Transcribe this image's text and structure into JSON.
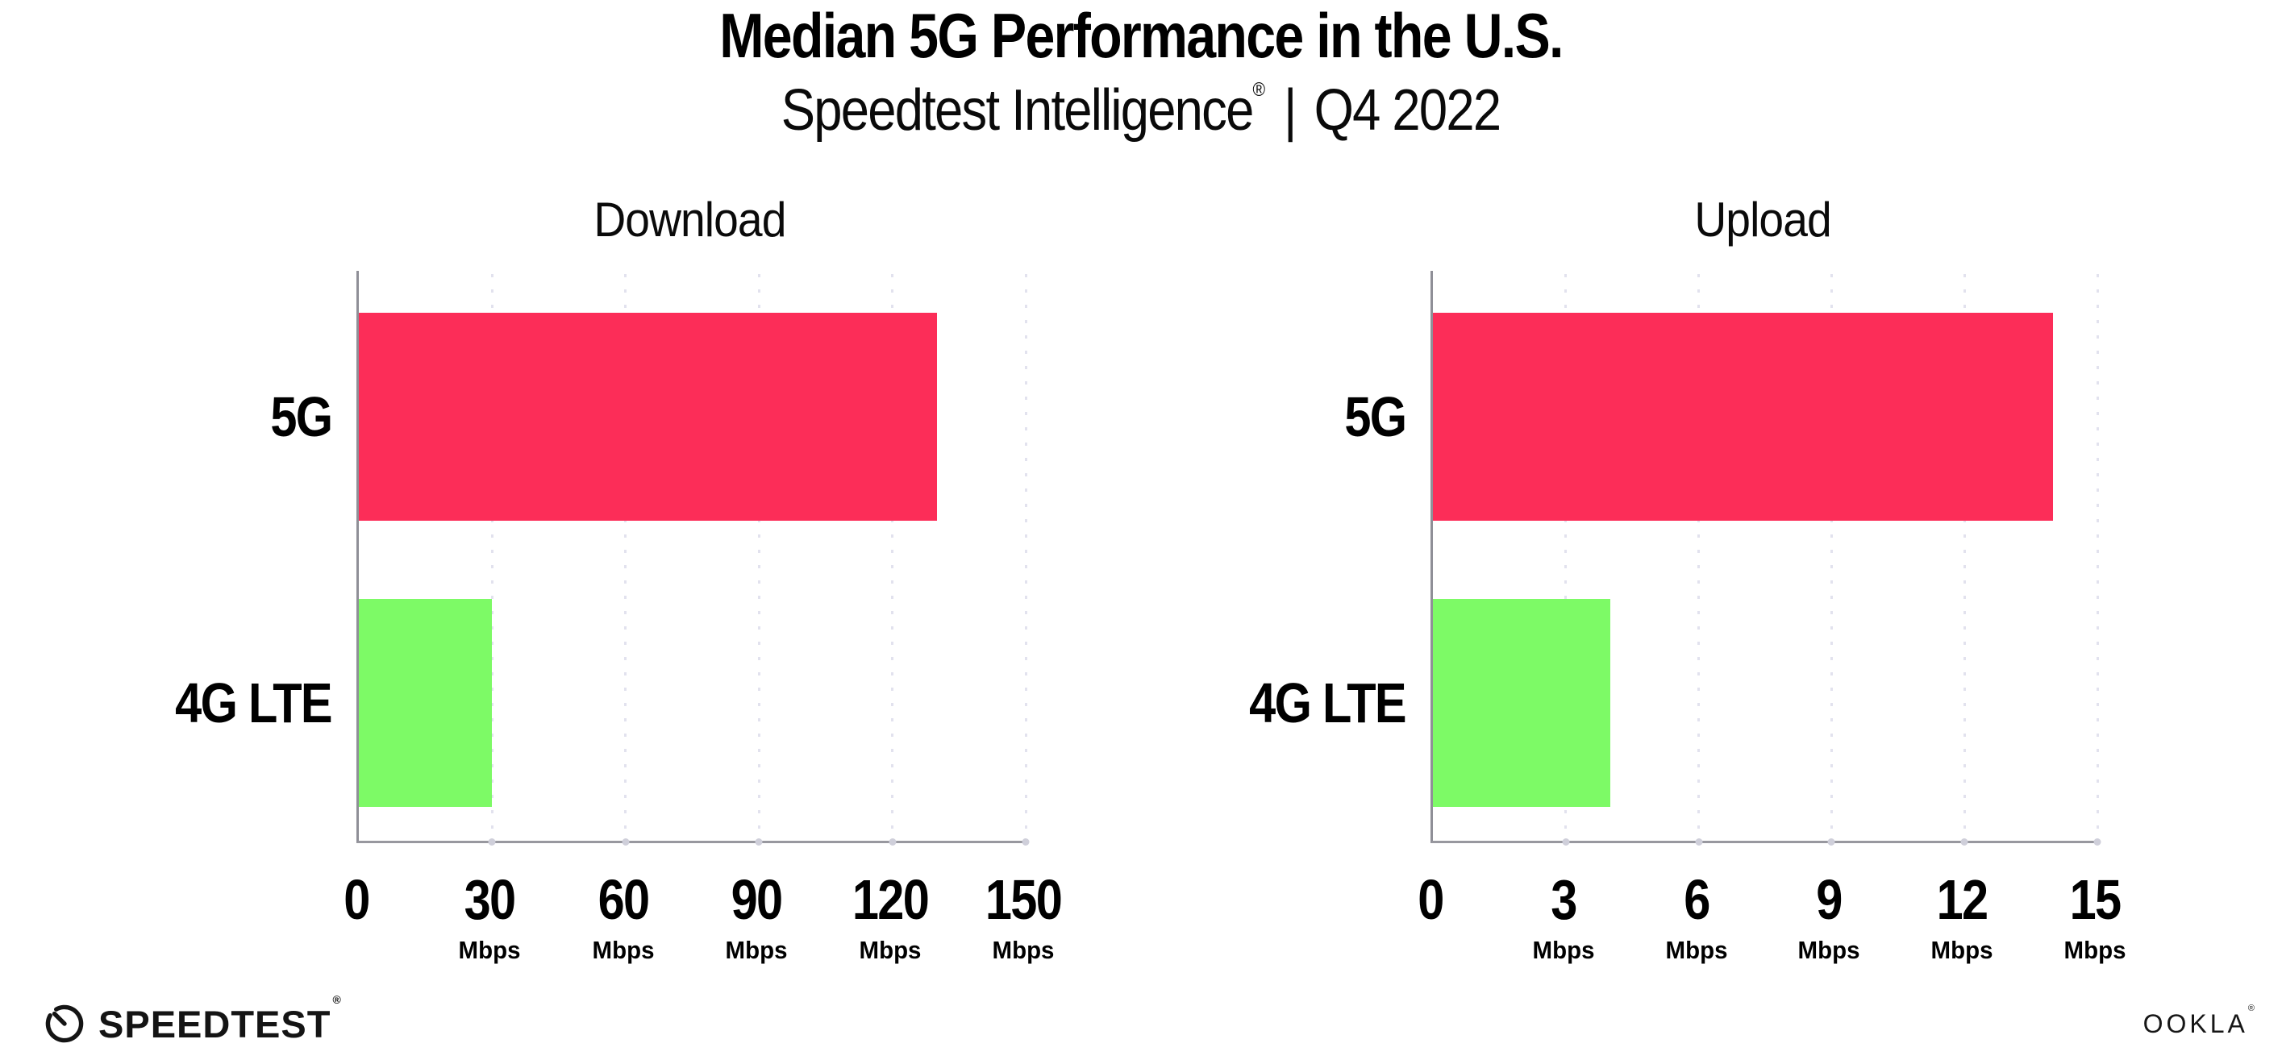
{
  "header": {
    "title": "Median 5G Performance in the U.S.",
    "subtitle": {
      "brand": "Speedtest Intelligence",
      "registered": "®",
      "separator": "|",
      "period": "Q4 2022"
    }
  },
  "chart_data": [
    {
      "type": "bar",
      "orientation": "horizontal",
      "title": "Download",
      "categories": [
        "5G",
        "4G LTE"
      ],
      "values": [
        130,
        30
      ],
      "unit": "Mbps",
      "tick_unit_label": "Mbps",
      "xlim": [
        0,
        150
      ],
      "xticks": [
        0,
        30,
        60,
        90,
        120,
        150
      ],
      "bar_colors": [
        "#FC2D58",
        "#7DFA66"
      ],
      "grid": "dotted-vertical",
      "legend": "none"
    },
    {
      "type": "bar",
      "orientation": "horizontal",
      "title": "Upload",
      "categories": [
        "5G",
        "4G LTE"
      ],
      "values": [
        14,
        4
      ],
      "unit": "Mbps",
      "tick_unit_label": "Mbps",
      "xlim": [
        0,
        15
      ],
      "xticks": [
        0,
        3,
        6,
        9,
        12,
        15
      ],
      "bar_colors": [
        "#FC2D58",
        "#7DFA66"
      ],
      "grid": "dotted-vertical",
      "legend": "none"
    }
  ],
  "footer": {
    "speedtest": {
      "label": "SPEEDTEST",
      "registered": "®"
    },
    "ookla": {
      "label": "OOKLA",
      "registered": "®"
    }
  },
  "colors": {
    "bar_5g": "#FC2D58",
    "bar_4g_lte": "#7DFA66",
    "gridline_dots": "#E2E2EE",
    "axis_line": "#98989F",
    "text": "#000000",
    "background": "#FFFFFF"
  }
}
